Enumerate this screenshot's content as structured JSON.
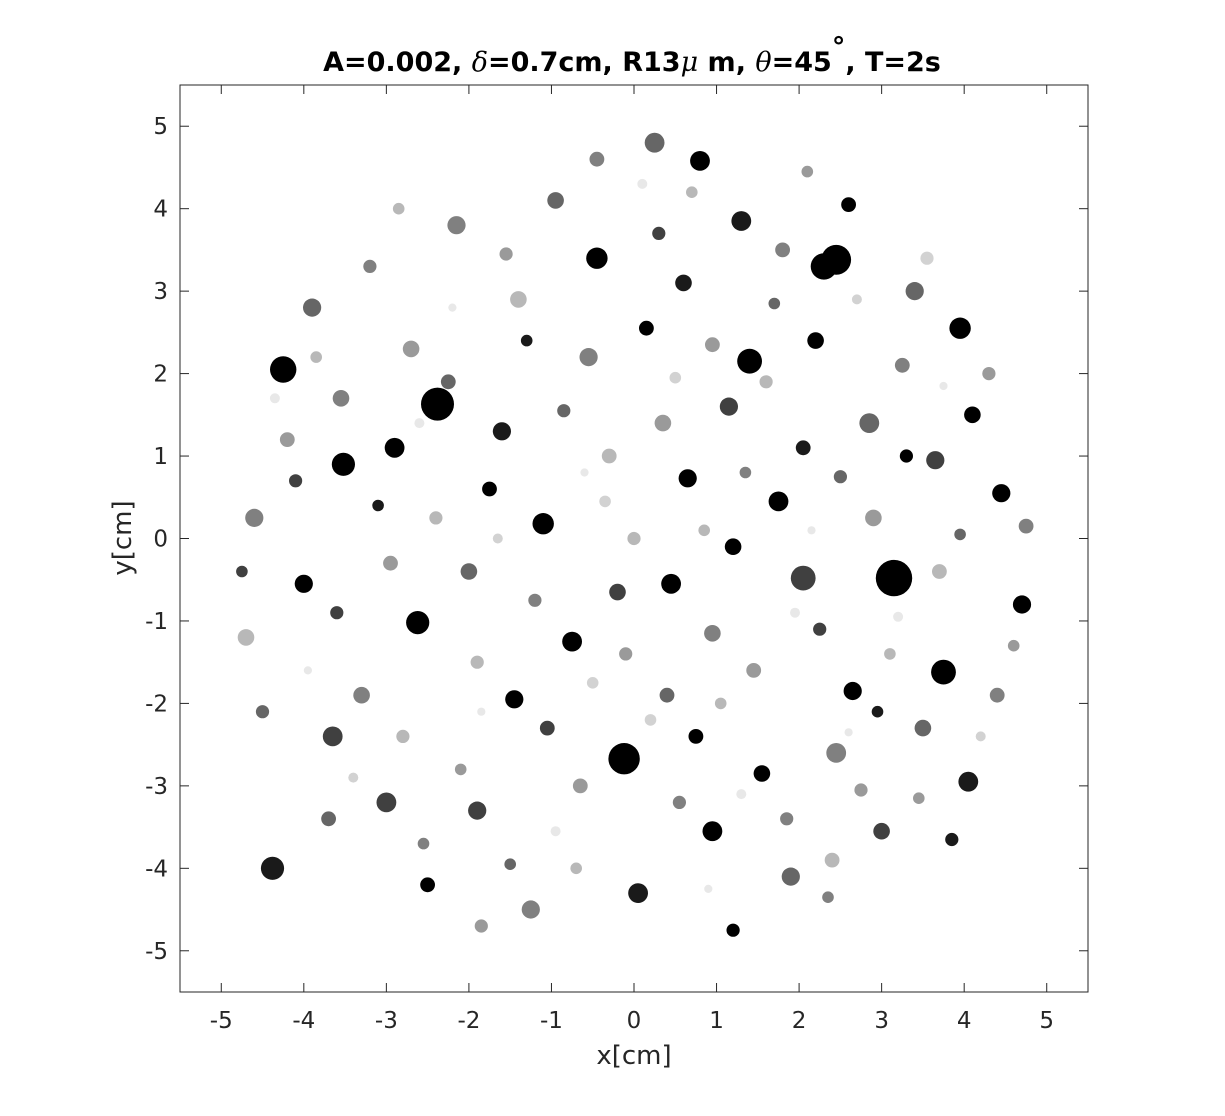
{
  "chart_data": {
    "type": "scatter",
    "title": {
      "p1": "A=0.002, ",
      "delta": "δ",
      "p2": "=0.7cm, R13",
      "mu": "μ",
      "p3": " m, ",
      "theta": "θ",
      "p4": "=45",
      "deg": "°",
      "p5": ", T=2s"
    },
    "xlabel": "x[cm]",
    "ylabel": "y[cm]",
    "xlim": [
      -5.5,
      5.5
    ],
    "ylim": [
      -5.5,
      5.5
    ],
    "grid": false,
    "box": true,
    "xticks": [
      -5,
      -4,
      -3,
      -2,
      -1,
      0,
      1,
      2,
      3,
      4,
      5
    ],
    "yticks": [
      -5,
      -4,
      -3,
      -2,
      -1,
      0,
      1,
      2,
      3,
      4,
      5
    ],
    "xtick_labels": [
      "-5",
      "-4",
      "-3",
      "-2",
      "-1",
      "0",
      "1",
      "2",
      "3",
      "4",
      "5"
    ],
    "ytick_labels": [
      "-5",
      "-4",
      "-3",
      "-2",
      "-1",
      "0",
      "1",
      "2",
      "3",
      "4",
      "5"
    ],
    "region": {
      "shape": "circle",
      "center": [
        0,
        0
      ],
      "radius": 5.0
    },
    "marker_colors": [
      "#000000",
      "#1a1a1a",
      "#404040",
      "#666666",
      "#808080",
      "#9a9a9a",
      "#b8b8b8",
      "#d2d2d2",
      "#e8e8e8"
    ],
    "points": [
      [
        -2.38,
        1.63,
        0.2,
        0
      ],
      [
        -0.12,
        -2.67,
        0.19,
        0
      ],
      [
        2.45,
        3.38,
        0.18,
        0
      ],
      [
        3.15,
        -0.48,
        0.22,
        0
      ],
      [
        -4.25,
        2.05,
        0.16,
        0
      ],
      [
        -3.52,
        0.9,
        0.14,
        0
      ],
      [
        3.75,
        -1.62,
        0.15,
        0
      ],
      [
        -4.38,
        -4.0,
        0.14,
        1
      ],
      [
        0.8,
        4.58,
        0.12,
        0
      ],
      [
        1.4,
        2.15,
        0.15,
        0
      ],
      [
        -2.62,
        -1.02,
        0.14,
        0
      ],
      [
        2.3,
        3.3,
        0.16,
        0
      ],
      [
        3.95,
        2.55,
        0.13,
        0
      ],
      [
        -1.1,
        0.18,
        0.13,
        0
      ],
      [
        0.65,
        0.73,
        0.11,
        0
      ],
      [
        2.05,
        -0.48,
        0.15,
        2
      ],
      [
        -1.45,
        -1.95,
        0.11,
        0
      ],
      [
        4.05,
        -2.95,
        0.12,
        1
      ],
      [
        -2.9,
        1.1,
        0.12,
        0
      ],
      [
        1.3,
        3.85,
        0.12,
        1
      ],
      [
        -3.65,
        -2.4,
        0.12,
        2
      ],
      [
        0.45,
        -0.55,
        0.12,
        0
      ],
      [
        2.85,
        1.4,
        0.12,
        3
      ],
      [
        -0.45,
        3.4,
        0.13,
        0
      ],
      [
        0.25,
        4.8,
        0.12,
        3
      ],
      [
        -4.6,
        0.25,
        0.11,
        4
      ],
      [
        4.7,
        -0.8,
        0.11,
        0
      ],
      [
        1.75,
        0.45,
        0.12,
        0
      ],
      [
        -1.9,
        -3.3,
        0.11,
        2
      ],
      [
        0.95,
        -3.55,
        0.12,
        0
      ],
      [
        3.4,
        3.0,
        0.11,
        3
      ],
      [
        -0.75,
        -1.25,
        0.12,
        0
      ],
      [
        2.45,
        -2.6,
        0.12,
        4
      ],
      [
        -3.9,
        2.8,
        0.11,
        3
      ],
      [
        1.15,
        1.6,
        0.11,
        2
      ],
      [
        -2.15,
        3.8,
        0.11,
        4
      ],
      [
        0.05,
        -4.3,
        0.12,
        1
      ],
      [
        -3.0,
        -3.2,
        0.12,
        2
      ],
      [
        4.45,
        0.55,
        0.11,
        0
      ],
      [
        -0.55,
        2.2,
        0.11,
        4
      ],
      [
        2.65,
        -1.85,
        0.11,
        0
      ],
      [
        -1.6,
        1.3,
        0.11,
        1
      ],
      [
        0.35,
        1.4,
        0.1,
        5
      ],
      [
        3.65,
        0.95,
        0.11,
        2
      ],
      [
        -4.0,
        -0.55,
        0.11,
        0
      ],
      [
        1.9,
        -4.1,
        0.11,
        3
      ],
      [
        -1.25,
        -4.5,
        0.11,
        4
      ],
      [
        2.2,
        2.4,
        0.1,
        0
      ],
      [
        -2.7,
        2.3,
        0.1,
        5
      ],
      [
        0.95,
        -1.15,
        0.1,
        4
      ],
      [
        -0.2,
        -0.65,
        0.1,
        2
      ],
      [
        4.1,
        1.5,
        0.1,
        0
      ],
      [
        -3.3,
        -1.9,
        0.1,
        4
      ],
      [
        1.55,
        -2.85,
        0.1,
        0
      ],
      [
        -0.95,
        4.1,
        0.1,
        3
      ],
      [
        3.0,
        -3.55,
        0.1,
        2
      ],
      [
        -4.7,
        -1.2,
        0.1,
        6
      ],
      [
        0.6,
        3.1,
        0.1,
        1
      ],
      [
        2.9,
        0.25,
        0.1,
        5
      ],
      [
        -2.0,
        -0.4,
        0.1,
        3
      ],
      [
        1.2,
        -0.1,
        0.1,
        0
      ],
      [
        -1.4,
        2.9,
        0.1,
        6
      ],
      [
        3.5,
        -2.3,
        0.1,
        3
      ],
      [
        -3.55,
        1.7,
        0.1,
        4
      ],
      [
        0.15,
        2.55,
        0.09,
        0
      ],
      [
        -0.65,
        -3.0,
        0.09,
        5
      ],
      [
        4.4,
        -1.9,
        0.09,
        4
      ],
      [
        2.4,
        -3.9,
        0.09,
        6
      ],
      [
        -2.5,
        -4.2,
        0.09,
        0
      ],
      [
        1.8,
        3.5,
        0.09,
        4
      ],
      [
        -4.2,
        1.2,
        0.09,
        5
      ],
      [
        0.4,
        -1.9,
        0.09,
        3
      ],
      [
        -1.75,
        0.6,
        0.09,
        0
      ],
      [
        3.25,
        2.1,
        0.09,
        4
      ],
      [
        -0.3,
        1.0,
        0.09,
        6
      ],
      [
        2.05,
        1.1,
        0.09,
        1
      ],
      [
        -2.95,
        -0.3,
        0.09,
        5
      ],
      [
        0.75,
        -2.4,
        0.09,
        0
      ],
      [
        -3.7,
        -3.4,
        0.09,
        3
      ],
      [
        4.75,
        0.15,
        0.09,
        4
      ],
      [
        1.45,
        -1.6,
        0.09,
        5
      ],
      [
        -1.05,
        -2.3,
        0.09,
        2
      ],
      [
        3.7,
        -0.4,
        0.09,
        6
      ],
      [
        -2.25,
        1.9,
        0.09,
        3
      ],
      [
        0.95,
        2.35,
        0.09,
        5
      ],
      [
        -0.45,
        4.6,
        0.09,
        4
      ],
      [
        2.6,
        4.05,
        0.09,
        0
      ],
      [
        -3.2,
        3.3,
        0.08,
        4
      ],
      [
        3.85,
        -3.65,
        0.08,
        1
      ],
      [
        -4.5,
        -2.1,
        0.08,
        3
      ],
      [
        1.2,
        -4.75,
        0.08,
        0
      ],
      [
        -1.85,
        -4.7,
        0.08,
        5
      ],
      [
        0.0,
        0.0,
        0.08,
        6
      ],
      [
        2.25,
        -1.1,
        0.08,
        2
      ],
      [
        -1.2,
        -0.75,
        0.08,
        4
      ],
      [
        3.3,
        1.0,
        0.08,
        0
      ],
      [
        -2.4,
        0.25,
        0.08,
        6
      ],
      [
        0.55,
        -3.2,
        0.08,
        4
      ],
      [
        -3.6,
        -0.9,
        0.08,
        2
      ],
      [
        4.3,
        2.0,
        0.08,
        5
      ],
      [
        1.6,
        1.9,
        0.08,
        6
      ],
      [
        -0.85,
        1.55,
        0.08,
        3
      ],
      [
        2.75,
        -3.05,
        0.08,
        5
      ],
      [
        -2.8,
        -2.4,
        0.08,
        6
      ],
      [
        0.3,
        3.7,
        0.08,
        2
      ],
      [
        -1.55,
        3.45,
        0.08,
        5
      ],
      [
        3.55,
        3.4,
        0.08,
        7
      ],
      [
        -4.1,
        0.7,
        0.08,
        2
      ],
      [
        1.85,
        -3.4,
        0.08,
        4
      ],
      [
        -0.1,
        -1.4,
        0.08,
        5
      ],
      [
        2.5,
        0.75,
        0.08,
        3
      ],
      [
        -1.9,
        -1.5,
        0.08,
        6
      ],
      [
        0.85,
        0.1,
        0.07,
        6
      ],
      [
        -3.1,
        0.4,
        0.07,
        1
      ],
      [
        4.6,
        -1.3,
        0.07,
        5
      ],
      [
        -0.7,
        -4.0,
        0.07,
        6
      ],
      [
        2.1,
        4.45,
        0.07,
        5
      ],
      [
        -2.55,
        -3.7,
        0.07,
        4
      ],
      [
        3.1,
        -1.4,
        0.07,
        6
      ],
      [
        -1.3,
        2.4,
        0.07,
        1
      ],
      [
        1.05,
        -2.0,
        0.07,
        6
      ],
      [
        -3.85,
        2.2,
        0.07,
        6
      ],
      [
        0.2,
        -2.2,
        0.07,
        7
      ],
      [
        2.95,
        -2.1,
        0.07,
        1
      ],
      [
        -0.35,
        0.45,
        0.07,
        7
      ],
      [
        1.35,
        0.8,
        0.07,
        4
      ],
      [
        -2.1,
        -2.8,
        0.07,
        5
      ],
      [
        3.95,
        0.05,
        0.07,
        3
      ],
      [
        -4.75,
        -0.4,
        0.07,
        2
      ],
      [
        0.7,
        4.2,
        0.07,
        6
      ],
      [
        -1.5,
        -3.95,
        0.07,
        3
      ],
      [
        2.35,
        -4.35,
        0.07,
        4
      ],
      [
        3.45,
        -3.15,
        0.07,
        5
      ],
      [
        -2.85,
        4.0,
        0.07,
        6
      ],
      [
        1.7,
        2.85,
        0.07,
        3
      ],
      [
        -0.5,
        -1.75,
        0.07,
        7
      ],
      [
        0.5,
        1.95,
        0.07,
        7
      ],
      [
        -1.65,
        0.0,
        0.06,
        7
      ],
      [
        2.7,
        2.9,
        0.06,
        7
      ],
      [
        -3.4,
        -2.9,
        0.06,
        7
      ],
      [
        4.2,
        -2.4,
        0.06,
        7
      ],
      [
        -0.95,
        -3.55,
        0.06,
        8
      ],
      [
        1.95,
        -0.9,
        0.06,
        8
      ],
      [
        -2.6,
        1.4,
        0.06,
        8
      ],
      [
        0.1,
        4.3,
        0.06,
        8
      ],
      [
        3.2,
        -0.95,
        0.06,
        8
      ],
      [
        -4.35,
        1.7,
        0.06,
        8
      ],
      [
        1.3,
        -3.1,
        0.06,
        8
      ],
      [
        -0.6,
        0.8,
        0.05,
        8
      ],
      [
        2.15,
        0.1,
        0.05,
        8
      ],
      [
        -1.85,
        -2.1,
        0.05,
        8
      ],
      [
        3.75,
        1.85,
        0.05,
        8
      ],
      [
        -3.95,
        -1.6,
        0.05,
        8
      ],
      [
        0.9,
        -4.25,
        0.05,
        8
      ],
      [
        -2.2,
        2.8,
        0.05,
        8
      ],
      [
        2.6,
        -2.35,
        0.05,
        8
      ]
    ]
  }
}
